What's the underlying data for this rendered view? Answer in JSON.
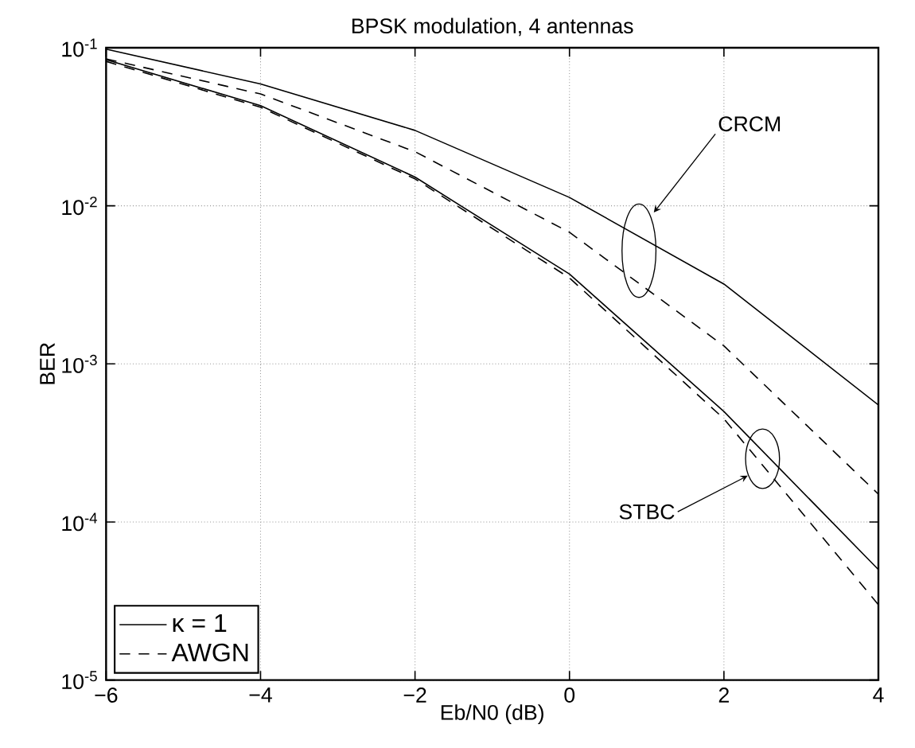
{
  "chart_data": {
    "type": "line",
    "title": "BPSK modulation, 4 antennas",
    "xlabel": "Eb/N0 (dB)",
    "ylabel": "BER",
    "x": [
      -6,
      -4,
      -2,
      0,
      2,
      4
    ],
    "series": [
      {
        "name": "κ = 1",
        "color": "#000000",
        "line_style": "solid",
        "values": [
          0.098,
          0.059,
          0.03,
          0.0113,
          0.0032,
          0.00055
        ]
      },
      {
        "name": "AWGN",
        "color": "#000000",
        "line_style": "dashed",
        "values": [
          0.085,
          0.051,
          0.022,
          0.0068,
          0.0013,
          0.00015
        ]
      },
      {
        "color": "#000000",
        "line_style": "solid",
        "values": [
          0.084,
          0.043,
          0.0152,
          0.0037,
          0.0005,
          5e-05
        ]
      },
      {
        "color": "#000000",
        "line_style": "dashed",
        "values": [
          0.082,
          0.042,
          0.0148,
          0.0035,
          0.00045,
          3e-05
        ]
      }
    ],
    "log": "y",
    "grid": true,
    "legend": "bottom left",
    "marker": "none",
    "xlim": [
      -6,
      4
    ],
    "ylim": [
      1e-05,
      0.1
    ],
    "xticks": [
      {
        "value": -6,
        "label": "−6"
      },
      {
        "value": -4,
        "label": "−4"
      },
      {
        "value": -2,
        "label": "−2"
      },
      0,
      2,
      4
    ],
    "yticks": [
      {
        "value": 1e-05,
        "label": "10$^{-5}$"
      },
      {
        "value": 0.0001,
        "label": "10$^{-4}$"
      },
      {
        "value": 0.001,
        "label": "10$^{-3}$"
      },
      {
        "value": 0.01,
        "label": "10$^{-2}$"
      },
      {
        "value": 0.1,
        "label": "10$^{-1}$"
      }
    ],
    "annotations": [
      "CRCM",
      "STBC"
    ]
  }
}
